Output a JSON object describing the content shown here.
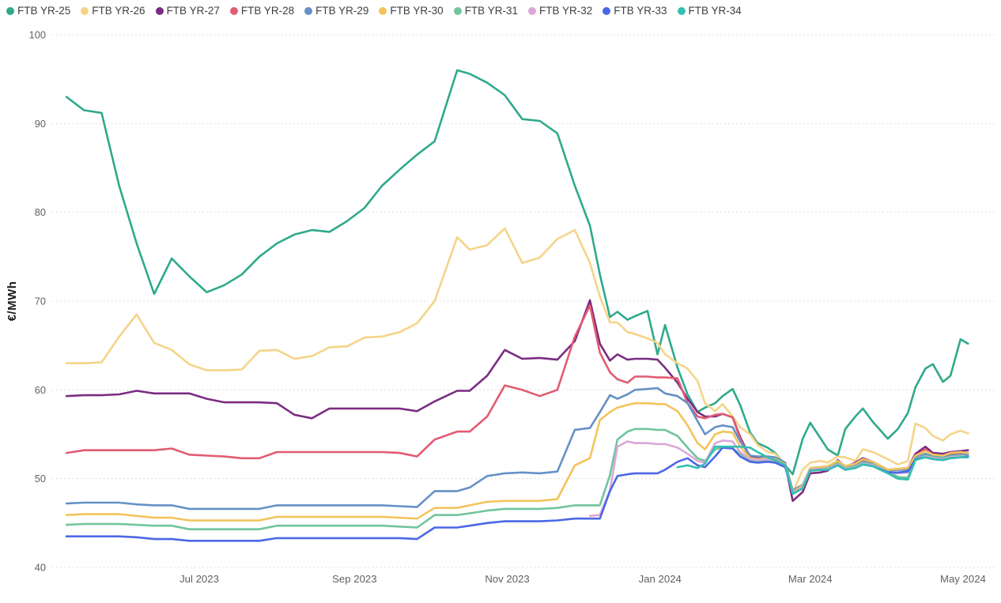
{
  "y_axis_title": "€/MWh",
  "chart_data": {
    "type": "line",
    "title": "",
    "xlabel": "",
    "ylabel": "€/MWh",
    "ylim": [
      40,
      100
    ],
    "y_ticks": [
      40,
      50,
      60,
      70,
      80,
      90,
      100
    ],
    "x_ticks": [
      {
        "label": "Jul 2023",
        "date": "2023-07-01"
      },
      {
        "label": "Sep 2023",
        "date": "2023-09-01"
      },
      {
        "label": "Nov 2023",
        "date": "2023-11-01"
      },
      {
        "label": "Jan 2024",
        "date": "2024-01-01"
      },
      {
        "label": "Mar 2024",
        "date": "2024-03-01"
      },
      {
        "label": "May 2024",
        "date": "2024-05-01"
      }
    ],
    "grid": "horizontal-dotted",
    "legend_position": "top-left",
    "x_range": [
      "2023-05-09",
      "2024-05-05"
    ],
    "x": [
      "2023-05-09",
      "2023-05-16",
      "2023-05-23",
      "2023-05-30",
      "2023-06-06",
      "2023-06-13",
      "2023-06-20",
      "2023-06-27",
      "2023-07-04",
      "2023-07-11",
      "2023-07-18",
      "2023-07-25",
      "2023-08-01",
      "2023-08-08",
      "2023-08-15",
      "2023-08-22",
      "2023-08-29",
      "2023-09-05",
      "2023-09-12",
      "2023-09-19",
      "2023-09-26",
      "2023-10-03",
      "2023-10-12",
      "2023-10-17",
      "2023-10-24",
      "2023-10-31",
      "2023-11-07",
      "2023-11-14",
      "2023-11-21",
      "2023-11-28",
      "2023-12-04",
      "2023-12-08",
      "2023-12-12",
      "2023-12-15",
      "2023-12-19",
      "2023-12-22",
      "2023-12-27",
      "2023-12-31",
      "2024-01-03",
      "2024-01-08",
      "2024-01-12",
      "2024-01-16",
      "2024-01-19",
      "2024-01-23",
      "2024-01-26",
      "2024-01-30",
      "2024-02-02",
      "2024-02-06",
      "2024-02-09",
      "2024-02-13",
      "2024-02-16",
      "2024-02-20",
      "2024-02-23",
      "2024-02-27",
      "2024-03-01",
      "2024-03-05",
      "2024-03-08",
      "2024-03-12",
      "2024-03-15",
      "2024-03-19",
      "2024-03-22",
      "2024-03-26",
      "2024-04-01",
      "2024-04-05",
      "2024-04-09",
      "2024-04-12",
      "2024-04-16",
      "2024-04-19",
      "2024-04-23",
      "2024-04-26",
      "2024-04-30",
      "2024-05-03"
    ],
    "series": [
      {
        "name": "FTB YR-25",
        "color": "#2fa98c",
        "values": [
          93.0,
          91.5,
          91.2,
          83.0,
          76.5,
          70.8,
          74.8,
          72.8,
          71.0,
          71.8,
          73.0,
          75.0,
          76.5,
          77.5,
          78.0,
          77.8,
          79.0,
          80.5,
          83.0,
          84.8,
          86.5,
          88.0,
          96.0,
          95.6,
          94.6,
          93.2,
          90.5,
          90.3,
          88.9,
          83.0,
          78.5,
          73.0,
          68.2,
          68.8,
          67.9,
          68.3,
          68.9,
          64.0,
          67.3,
          62.5,
          59.5,
          57.5,
          58.0,
          58.5,
          59.3,
          60.1,
          58.3,
          55.2,
          54.0,
          53.5,
          52.9,
          51.5,
          50.5,
          54.5,
          56.3,
          54.6,
          53.3,
          52.6,
          55.6,
          57.0,
          57.9,
          56.4,
          54.5,
          55.6,
          57.4,
          60.3,
          62.4,
          62.9,
          60.9,
          61.6,
          65.7,
          65.2
        ]
      },
      {
        "name": "FTB YR-26",
        "color": "#f5d488",
        "values": [
          63.0,
          63.0,
          63.1,
          66.0,
          68.5,
          65.3,
          64.5,
          62.9,
          62.2,
          62.2,
          62.3,
          64.4,
          64.5,
          63.5,
          63.8,
          64.8,
          64.9,
          65.9,
          66.0,
          66.5,
          67.5,
          70.0,
          77.2,
          75.8,
          76.3,
          78.2,
          74.3,
          74.9,
          77.0,
          78.0,
          74.3,
          70.5,
          67.6,
          67.6,
          66.5,
          66.3,
          65.8,
          65.3,
          64.0,
          63.0,
          62.4,
          61.0,
          58.5,
          57.6,
          58.4,
          57.0,
          55.8,
          55.0,
          53.8,
          53.0,
          52.8,
          51.5,
          48.4,
          51.0,
          51.8,
          52.0,
          51.8,
          52.5,
          52.4,
          52.0,
          53.3,
          53.0,
          52.2,
          51.6,
          52.0,
          56.2,
          55.7,
          54.8,
          54.3,
          55.0,
          55.4,
          55.1
        ]
      },
      {
        "name": "FTB YR-27",
        "color": "#7b2c82",
        "values": [
          59.3,
          59.4,
          59.4,
          59.5,
          59.9,
          59.6,
          59.6,
          59.6,
          59.0,
          58.6,
          58.6,
          58.6,
          58.5,
          57.2,
          56.8,
          57.9,
          57.9,
          57.9,
          57.9,
          57.9,
          57.6,
          58.7,
          59.9,
          59.9,
          61.6,
          64.5,
          63.5,
          63.6,
          63.4,
          65.5,
          70.1,
          65.2,
          63.3,
          64.0,
          63.4,
          63.5,
          63.5,
          63.4,
          62.5,
          60.8,
          59.0,
          57.5,
          57.0,
          57.0,
          57.3,
          56.9,
          54.7,
          52.4,
          52.3,
          52.4,
          52.3,
          51.7,
          47.5,
          48.5,
          50.6,
          50.7,
          50.9,
          52.1,
          51.3,
          51.8,
          52.3,
          51.9,
          51.0,
          51.1,
          51.2,
          52.8,
          53.6,
          52.9,
          52.8,
          53.0,
          53.1,
          53.2
        ]
      },
      {
        "name": "FTB YR-28",
        "color": "#e25b72",
        "values": [
          52.9,
          53.2,
          53.2,
          53.2,
          53.2,
          53.2,
          53.4,
          52.7,
          52.6,
          52.5,
          52.3,
          52.3,
          53.0,
          53.0,
          53.0,
          53.0,
          53.0,
          53.0,
          53.0,
          52.9,
          52.5,
          54.4,
          55.3,
          55.3,
          57.0,
          60.5,
          60.0,
          59.3,
          60.0,
          66.0,
          69.5,
          64.2,
          62.0,
          61.2,
          60.8,
          61.5,
          61.5,
          61.4,
          61.4,
          61.3,
          58.5,
          57.0,
          56.8,
          57.2,
          57.3,
          56.9,
          54.5,
          52.3,
          52.2,
          52.3,
          52.2,
          51.6,
          48.3,
          49.0,
          51.0,
          51.1,
          51.2,
          52.0,
          51.4,
          51.6,
          52.1,
          51.8,
          51.0,
          51.0,
          51.1,
          52.6,
          53.3,
          52.7,
          52.6,
          52.8,
          52.9,
          52.9
        ]
      },
      {
        "name": "FTB YR-29",
        "color": "#6591c6",
        "values": [
          47.2,
          47.3,
          47.3,
          47.3,
          47.1,
          47.0,
          47.0,
          46.6,
          46.6,
          46.6,
          46.6,
          46.6,
          47.0,
          47.0,
          47.0,
          47.0,
          47.0,
          47.0,
          47.0,
          46.9,
          46.8,
          48.6,
          48.6,
          49.0,
          50.3,
          50.6,
          50.7,
          50.6,
          50.8,
          55.5,
          55.7,
          57.5,
          59.4,
          59.0,
          59.5,
          60.0,
          60.1,
          60.2,
          59.6,
          59.3,
          58.5,
          56.5,
          55.0,
          55.8,
          56.0,
          55.8,
          54.2,
          52.6,
          52.5,
          52.5,
          52.4,
          51.8,
          48.7,
          49.3,
          51.2,
          51.3,
          51.3,
          51.8,
          51.3,
          51.5,
          51.9,
          51.7,
          50.9,
          51.0,
          51.0,
          52.4,
          52.8,
          52.5,
          52.4,
          52.6,
          52.7,
          52.7
        ]
      },
      {
        "name": "FTB YR-30",
        "color": "#f2c45c",
        "values": [
          45.9,
          46.0,
          46.0,
          46.0,
          45.8,
          45.6,
          45.6,
          45.3,
          45.3,
          45.3,
          45.3,
          45.3,
          45.7,
          45.7,
          45.7,
          45.7,
          45.7,
          45.7,
          45.7,
          45.6,
          45.5,
          46.7,
          46.7,
          47.0,
          47.4,
          47.5,
          47.5,
          47.5,
          47.7,
          51.5,
          52.3,
          56.6,
          57.5,
          58.0,
          58.3,
          58.5,
          58.5,
          58.4,
          58.4,
          57.6,
          56.0,
          54.0,
          53.3,
          55.0,
          55.3,
          55.2,
          53.6,
          52.3,
          52.2,
          52.3,
          52.2,
          51.6,
          48.5,
          49.2,
          51.2,
          51.3,
          51.4,
          52.0,
          51.4,
          51.7,
          52.2,
          51.9,
          51.0,
          51.1,
          51.2,
          52.6,
          53.1,
          52.7,
          52.6,
          52.9,
          53.0,
          52.9
        ]
      },
      {
        "name": "FTB YR-31",
        "color": "#72c49c",
        "values": [
          44.8,
          44.9,
          44.9,
          44.9,
          44.8,
          44.7,
          44.7,
          44.3,
          44.3,
          44.3,
          44.3,
          44.3,
          44.7,
          44.7,
          44.7,
          44.7,
          44.7,
          44.7,
          44.7,
          44.6,
          44.5,
          45.9,
          45.9,
          46.1,
          46.4,
          46.6,
          46.6,
          46.6,
          46.7,
          47.0,
          47.0,
          47.0,
          50.4,
          54.4,
          55.3,
          55.6,
          55.6,
          55.5,
          55.5,
          54.8,
          53.5,
          52.3,
          52.0,
          53.3,
          53.5,
          53.4,
          52.8,
          52.1,
          52.0,
          52.1,
          52.0,
          51.4,
          48.4,
          49.0,
          51.0,
          51.1,
          51.2,
          51.7,
          51.2,
          51.4,
          51.8,
          51.6,
          50.8,
          50.2,
          50.1,
          52.3,
          52.6,
          52.4,
          52.3,
          52.5,
          52.6,
          52.6
        ]
      },
      {
        "name": "FTB YR-32",
        "color": "#dca7d6",
        "values": [
          null,
          null,
          null,
          null,
          null,
          null,
          null,
          null,
          null,
          null,
          null,
          null,
          null,
          null,
          null,
          null,
          null,
          null,
          null,
          null,
          null,
          null,
          null,
          null,
          null,
          null,
          null,
          null,
          null,
          null,
          45.8,
          45.9,
          48.7,
          53.6,
          54.2,
          54.0,
          54.0,
          53.9,
          53.9,
          53.5,
          52.8,
          52.0,
          51.8,
          54.0,
          54.3,
          54.2,
          53.0,
          52.2,
          52.1,
          52.2,
          52.1,
          51.5,
          48.4,
          49.0,
          51.0,
          51.1,
          51.1,
          51.6,
          51.1,
          51.3,
          51.7,
          51.5,
          50.7,
          50.6,
          50.7,
          52.2,
          52.5,
          52.3,
          52.2,
          52.4,
          52.5,
          52.5
        ]
      },
      {
        "name": "FTB YR-33",
        "color": "#4c67e6",
        "values": [
          43.5,
          43.5,
          43.5,
          43.5,
          43.4,
          43.2,
          43.2,
          43.0,
          43.0,
          43.0,
          43.0,
          43.0,
          43.3,
          43.3,
          43.3,
          43.3,
          43.3,
          43.3,
          43.3,
          43.3,
          43.2,
          44.5,
          44.5,
          44.7,
          45.0,
          45.2,
          45.2,
          45.2,
          45.3,
          45.5,
          45.5,
          45.5,
          48.6,
          50.3,
          50.5,
          50.6,
          50.6,
          50.6,
          51.0,
          51.9,
          52.3,
          51.5,
          51.3,
          52.5,
          53.5,
          53.4,
          52.5,
          51.9,
          51.8,
          51.9,
          51.8,
          51.3,
          48.3,
          48.9,
          50.9,
          51.0,
          51.0,
          51.5,
          51.0,
          51.2,
          51.6,
          51.4,
          50.7,
          50.7,
          50.8,
          52.2,
          52.4,
          52.2,
          52.1,
          52.3,
          52.4,
          52.5
        ]
      },
      {
        "name": "FTB YR-34",
        "color": "#34bfb0",
        "values": [
          null,
          null,
          null,
          null,
          null,
          null,
          null,
          null,
          null,
          null,
          null,
          null,
          null,
          null,
          null,
          null,
          null,
          null,
          null,
          null,
          null,
          null,
          null,
          null,
          null,
          null,
          null,
          null,
          null,
          null,
          null,
          null,
          null,
          null,
          null,
          null,
          null,
          null,
          null,
          51.3,
          51.5,
          51.2,
          51.7,
          53.6,
          53.6,
          53.6,
          53.6,
          53.5,
          53.0,
          52.4,
          52.1,
          51.5,
          48.3,
          48.9,
          50.9,
          51.0,
          51.0,
          51.5,
          51.0,
          51.2,
          51.6,
          51.4,
          50.6,
          50.0,
          49.9,
          52.1,
          52.4,
          52.2,
          52.1,
          52.3,
          52.4,
          52.4
        ]
      }
    ]
  }
}
